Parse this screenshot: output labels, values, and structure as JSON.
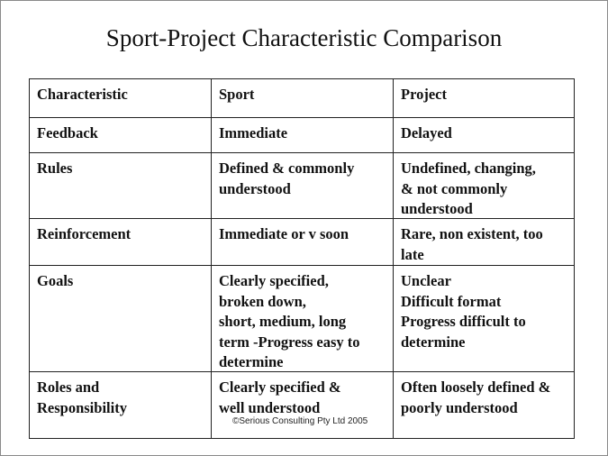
{
  "title": "Sport-Project Characteristic Comparison",
  "table": {
    "rows": [
      [
        [
          "Characteristic"
        ],
        [
          "Sport"
        ],
        [
          "Project"
        ]
      ],
      [
        [
          "Feedback"
        ],
        [
          "Immediate"
        ],
        [
          "Delayed"
        ]
      ],
      [
        [
          "Rules"
        ],
        [
          "Defined & commonly",
          "understood"
        ],
        [
          "Undefined, changing,",
          "& not commonly",
          "understood"
        ]
      ],
      [
        [
          "Reinforcement"
        ],
        [
          "Immediate or v soon"
        ],
        [
          "Rare, non existent, too",
          "late"
        ]
      ],
      [
        [
          "Goals"
        ],
        [
          "Clearly specified,",
          "broken down,",
          "short, medium, long",
          "term -Progress easy to",
          "determine"
        ],
        [
          "Unclear",
          "Difficult format",
          "Progress difficult to",
          "determine"
        ]
      ],
      [
        [
          "Roles and",
          "Responsibility"
        ],
        [
          "Clearly specified &",
          "well understood"
        ],
        [
          "Often loosely defined &",
          "poorly understood"
        ]
      ]
    ]
  },
  "footer": "©Serious Consulting Pty Ltd 2005"
}
